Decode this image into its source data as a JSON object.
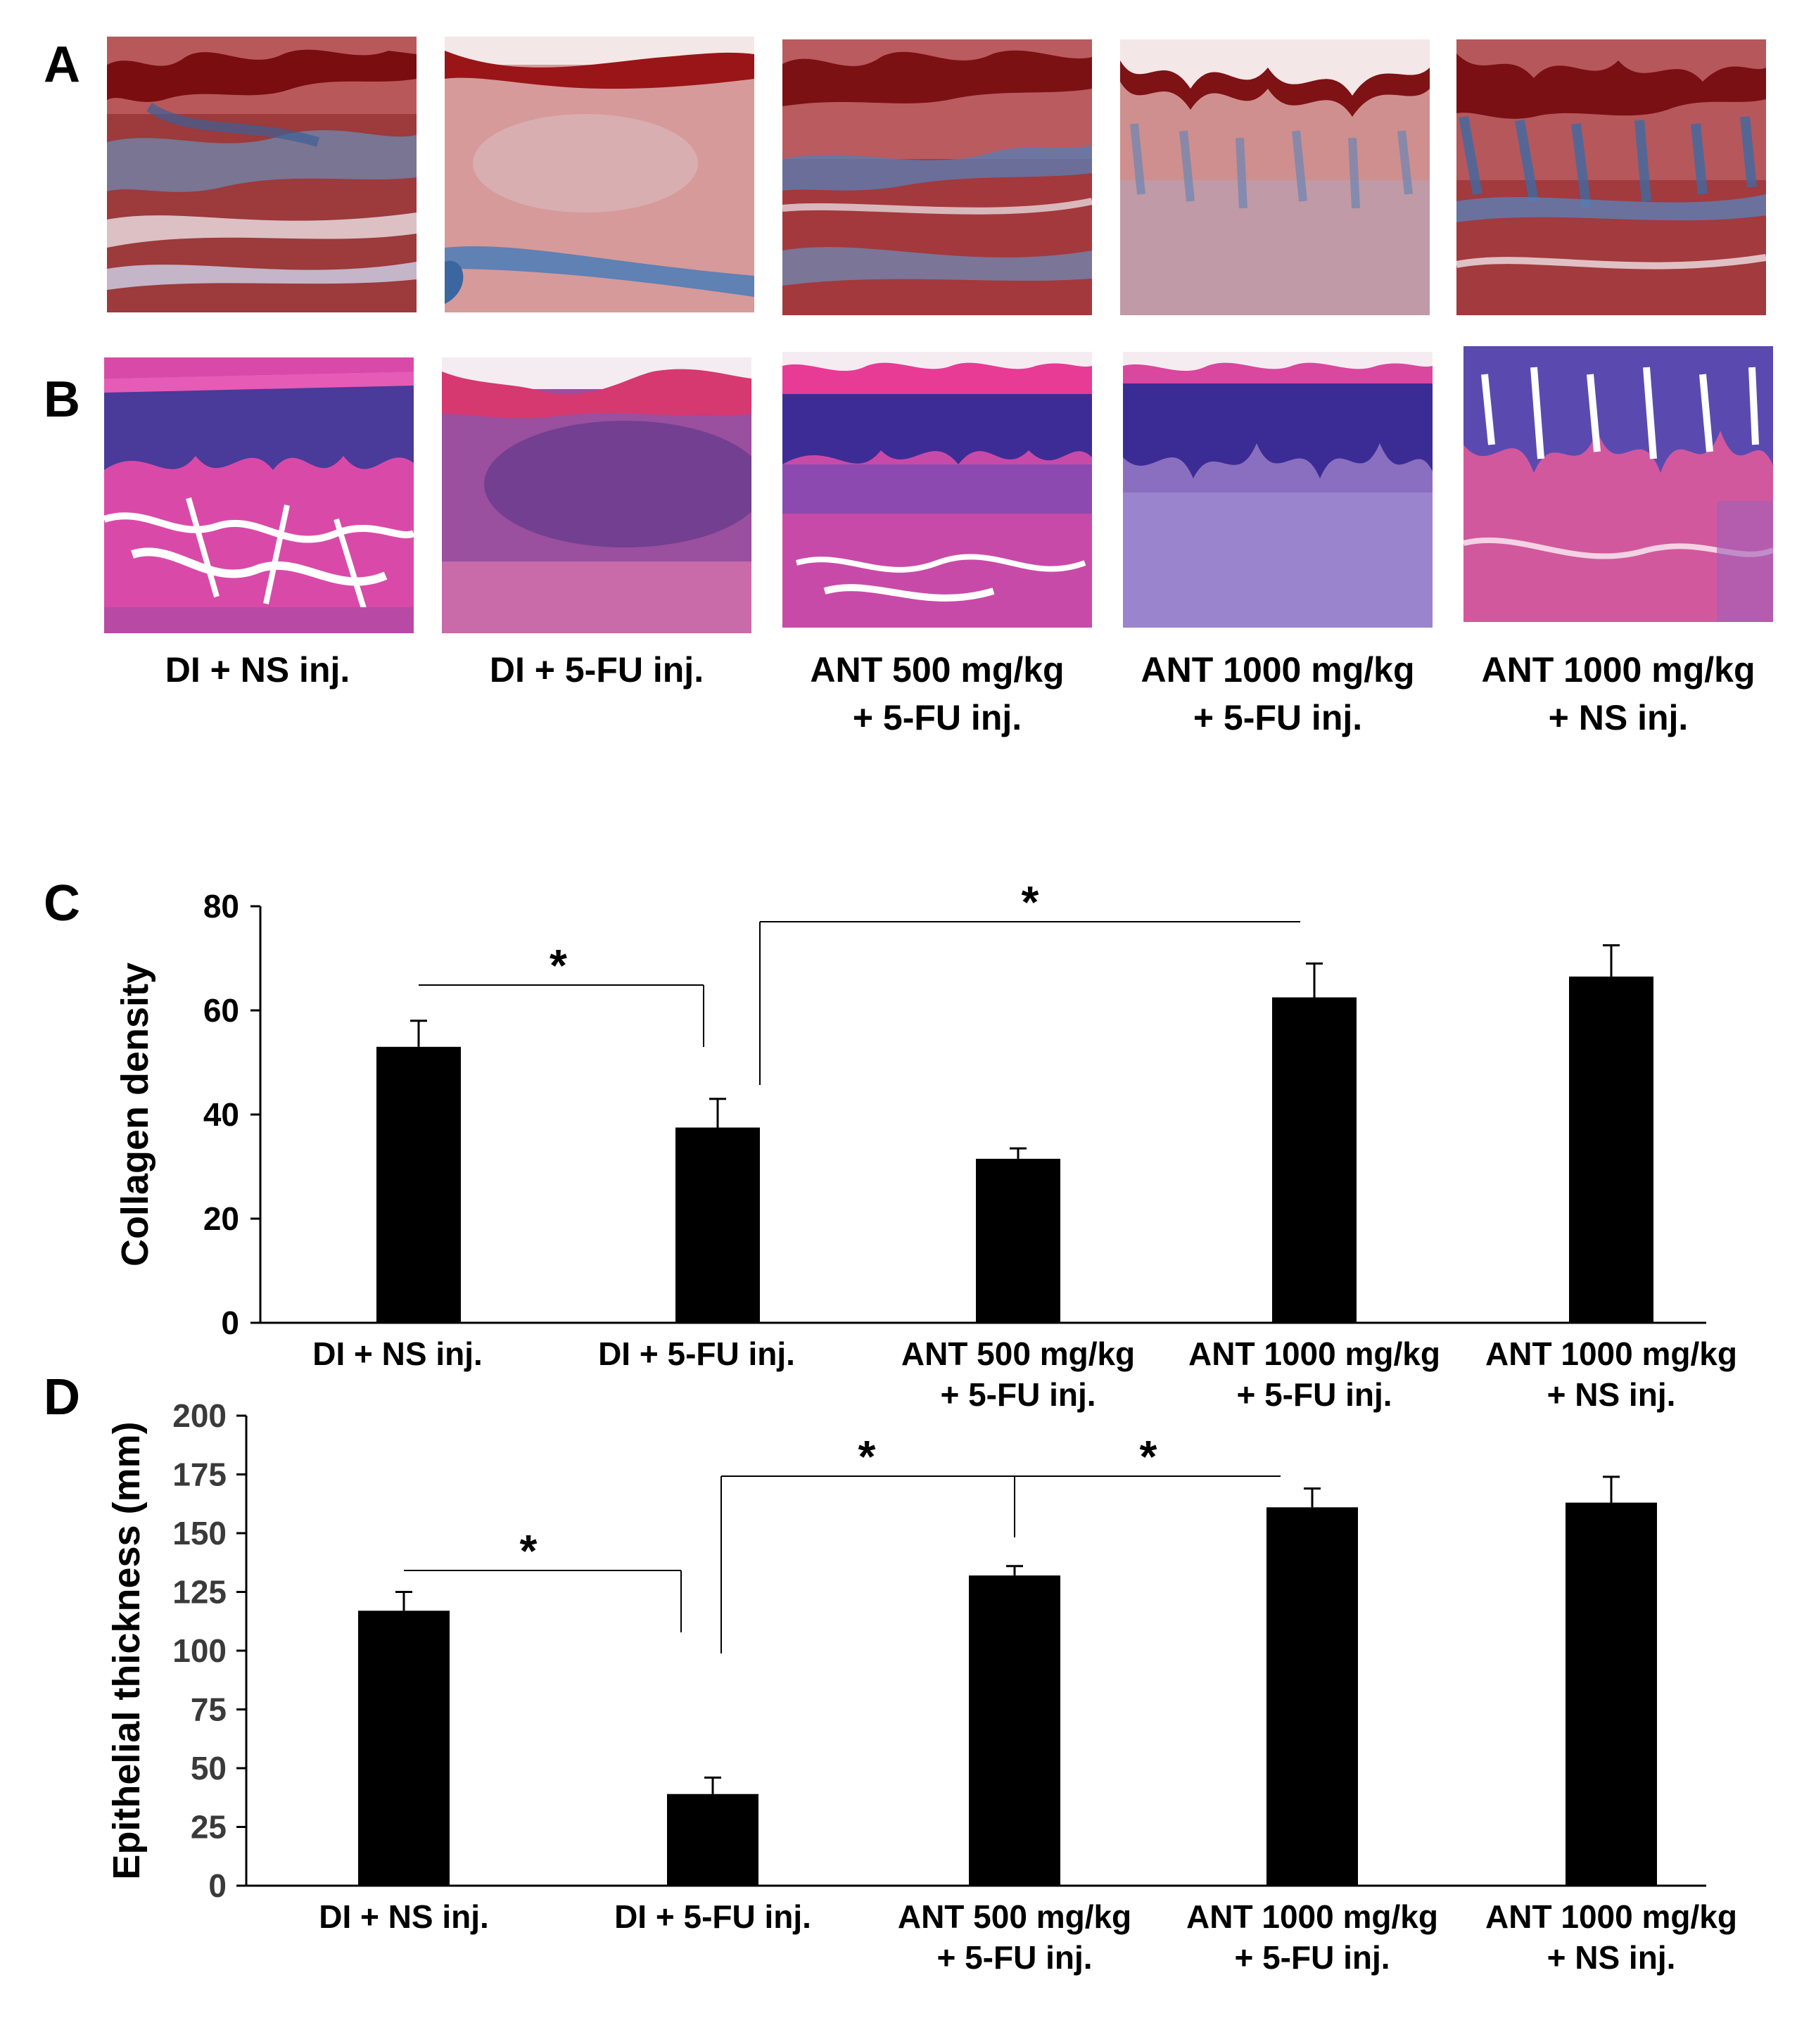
{
  "panels": {
    "A": "A",
    "B": "B",
    "C": "C",
    "D": "D"
  },
  "micrographs": {
    "row_a_style": "masson-trichrome",
    "row_b_style": "hematoxylin-eosin",
    "groups": [
      "DI  + NS inj.",
      "DI + 5-FU inj.",
      "ANT 500 mg/kg\n+ 5-FU inj.",
      "ANT 1000 mg/kg\n+ 5-FU inj.",
      "ANT 1000 mg/kg\n+ NS inj."
    ]
  },
  "chart_data": [
    {
      "type": "bar",
      "panel": "C",
      "categories": [
        "DI  + NS inj.",
        "DI  + 5-FU inj.",
        "ANT 500 mg/kg\n+ 5-FU inj.",
        "ANT 1000 mg/kg\n+ 5-FU inj.",
        "ANT 1000 mg/kg\n+ NS inj."
      ],
      "values": [
        53,
        37.5,
        31.5,
        62.5,
        66.5
      ],
      "errors": [
        5,
        5.5,
        2,
        6.5,
        6
      ],
      "ylabel": "Collagen density",
      "xlabel": "",
      "ylim": [
        0,
        80
      ],
      "yticks": [
        0,
        20,
        40,
        60,
        80
      ],
      "bar_color": "#000000",
      "significance": [
        {
          "from": 0,
          "to": 1,
          "label": "*"
        },
        {
          "from": 1,
          "to": 3,
          "label": "*"
        }
      ]
    },
    {
      "type": "bar",
      "panel": "D",
      "categories": [
        "DI  + NS inj.",
        "DI  + 5-FU inj.",
        "ANT 500 mg/kg\n+ 5-FU inj.",
        "ANT 1000 mg/kg\n+ 5-FU inj.",
        "ANT 1000 mg/kg\n+ NS inj."
      ],
      "values": [
        117,
        39,
        132,
        161,
        163
      ],
      "errors": [
        8,
        7,
        4,
        8,
        11
      ],
      "ylabel": "Epithelial thickness (mm)",
      "xlabel": "",
      "ylim": [
        0,
        200
      ],
      "yticks": [
        0,
        25,
        50,
        75,
        100,
        125,
        150,
        175,
        200
      ],
      "bar_color": "#000000",
      "significance": [
        {
          "from": 0,
          "to": 1,
          "label": "*"
        },
        {
          "from": 1,
          "to": 2,
          "label": "*"
        },
        {
          "from": 1,
          "to": 3,
          "label": "*"
        }
      ]
    }
  ]
}
